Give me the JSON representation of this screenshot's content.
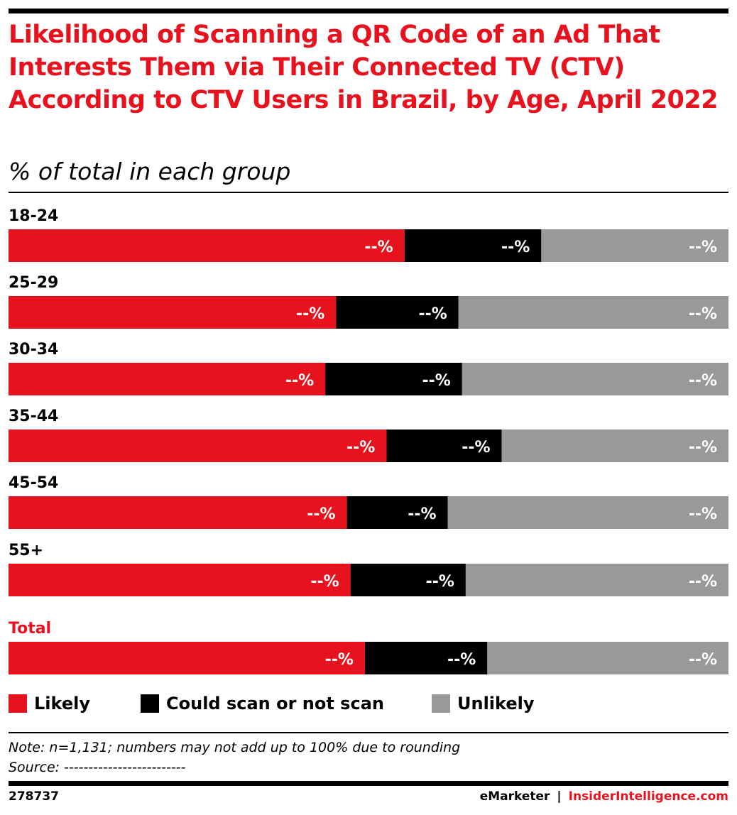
{
  "title": "Likelihood of Scanning a QR Code of an Ad That Interests Them via Their Connected TV (CTV) According to CTV Users in Brazil, by Age, April 2022",
  "subtitle": "% of total in each group",
  "colors": {
    "likely": "#e8121e",
    "could": "#000000",
    "unlikely": "#999999",
    "total_label": "#e8121e"
  },
  "chart_data": {
    "type": "bar",
    "orientation": "horizontal",
    "stacked": true,
    "normalized": true,
    "categories": [
      "18-24",
      "25-29",
      "30-34",
      "35-44",
      "45-54",
      "55+",
      "Total"
    ],
    "series": [
      {
        "name": "Likely",
        "values": [
          55,
          45.5,
          44,
          52.5,
          47,
          47.5,
          49.5
        ],
        "label": "--%"
      },
      {
        "name": "Could scan or not scan",
        "values": [
          19,
          17,
          19,
          16,
          14,
          16,
          17
        ],
        "label": "--%"
      },
      {
        "name": "Unlikely",
        "values": [
          26,
          37.5,
          37,
          31.5,
          39,
          36.5,
          33.5
        ],
        "label": "--%"
      }
    ],
    "xlim": [
      0,
      100
    ],
    "grid": false,
    "legend": "bottom"
  },
  "legend": [
    {
      "label": "Likely",
      "color": "#e8121e"
    },
    {
      "label": "Could scan or not scan",
      "color": "#000000"
    },
    {
      "label": "Unlikely",
      "color": "#999999"
    }
  ],
  "note": "Note: n=1,131; numbers may not add up to 100% due to rounding",
  "source": "Source: -------------------------",
  "footer": {
    "id": "278737",
    "brand1": "eMarketer",
    "separator": "|",
    "brand2": "InsiderIntelligence.com"
  }
}
